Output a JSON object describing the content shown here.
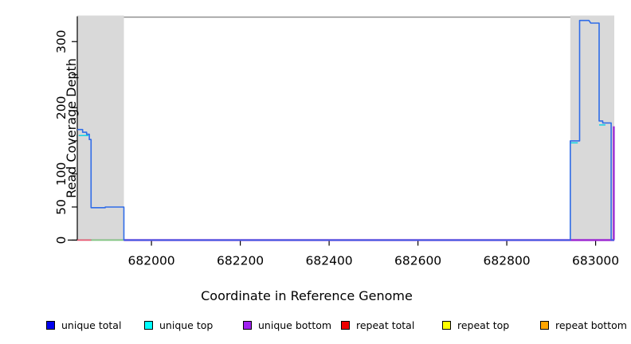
{
  "figure": {
    "xlabel": "Coordinate in Reference Genome",
    "ylabel": "Read Coverage Depth"
  },
  "chart_data": {
    "type": "line",
    "title": "",
    "xlabel": "Coordinate in Reference Genome",
    "ylabel": "Read Coverage Depth",
    "xlim": [
      681833,
      683042
    ],
    "ylim": [
      0,
      337
    ],
    "grid": false,
    "legend_position": "bottom",
    "x_ticks": [
      {
        "value": 682000,
        "label": "682000"
      },
      {
        "value": 682200,
        "label": "682200"
      },
      {
        "value": 682400,
        "label": "682400"
      },
      {
        "value": 682600,
        "label": "682600"
      },
      {
        "value": 682800,
        "label": "682800"
      },
      {
        "value": 683000,
        "label": "683000"
      }
    ],
    "y_ticks": [
      {
        "value": 0,
        "label": "0"
      },
      {
        "value": 50,
        "label": "50"
      },
      {
        "value": 100,
        "label": "100"
      },
      {
        "value": 150,
        "label": ""
      },
      {
        "value": 200,
        "label": "200"
      },
      {
        "value": 250,
        "label": ""
      },
      {
        "value": 300,
        "label": "300"
      }
    ],
    "shaded_regions": [
      {
        "name": "repeat-region-left",
        "x0": 681833,
        "x1": 681938
      },
      {
        "name": "repeat-region-right",
        "x0": 682943,
        "x1": 683042
      }
    ],
    "region_fill": "#d9d9d9",
    "box_color": "#8f8f8f",
    "axis_color": "#000000",
    "series": [
      {
        "name": "overlap green",
        "color": "#7dc87d",
        "width": 1.4,
        "segments": [
          [
            [
              681864,
              0
            ],
            [
              681938,
              0
            ]
          ]
        ]
      },
      {
        "name": "repeat total",
        "color": "#f0506a",
        "width": 1.4,
        "segments": [
          [
            [
              681833,
              0
            ],
            [
              681864,
              0
            ]
          ],
          [
            [
              682943,
              0
            ],
            [
              683041,
              0
            ]
          ]
        ]
      },
      {
        "name": "unique bottom",
        "color": "#9d2ad2",
        "width": 2.4,
        "segments": [
          [
            [
              681938,
              0
            ],
            [
              683042,
              0
            ]
          ],
          [
            [
              683041,
              172
            ],
            [
              683041,
              0
            ]
          ]
        ]
      },
      {
        "name": "unique top",
        "color": "#00d2e6",
        "width": 1.4,
        "segments": [
          [
            [
              681836,
              158
            ],
            [
              681858,
              158
            ]
          ],
          [
            [
              682943,
              147
            ],
            [
              682960,
              147
            ]
          ],
          [
            [
              683008,
              174
            ],
            [
              683022,
              174
            ]
          ]
        ]
      },
      {
        "name": "unique total",
        "color": "#2f6ce8",
        "width": 1.6,
        "segments": [
          [
            [
              681833,
              167
            ],
            [
              681845,
              167
            ],
            [
              681845,
              163
            ],
            [
              681854,
              163
            ],
            [
              681854,
              160
            ],
            [
              681860,
              160
            ],
            [
              681860,
              152
            ],
            [
              681864,
              152
            ],
            [
              681864,
              49
            ],
            [
              681896,
              49
            ],
            [
              681896,
              50
            ],
            [
              681938,
              50
            ],
            [
              681938,
              0
            ],
            [
              682943,
              0
            ],
            [
              682943,
              150
            ],
            [
              682964,
              150
            ],
            [
              682964,
              332
            ],
            [
              682985,
              332
            ],
            [
              682987,
              330
            ],
            [
              682989,
              328
            ],
            [
              683008,
              328
            ],
            [
              683008,
              180
            ],
            [
              683016,
              180
            ],
            [
              683016,
              177
            ],
            [
              683035,
              177
            ],
            [
              683035,
              0
            ],
            [
              683042,
              0
            ]
          ]
        ]
      }
    ],
    "legend": [
      {
        "label": "unique total",
        "color": "#0000ee"
      },
      {
        "label": "unique top",
        "color": "#00ffff"
      },
      {
        "label": "unique bottom",
        "color": "#a020f0"
      },
      {
        "label": "repeat total",
        "color": "#ee0000"
      },
      {
        "label": "repeat top",
        "color": "#ffff00"
      },
      {
        "label": "repeat bottom",
        "color": "#ffa500"
      }
    ]
  }
}
